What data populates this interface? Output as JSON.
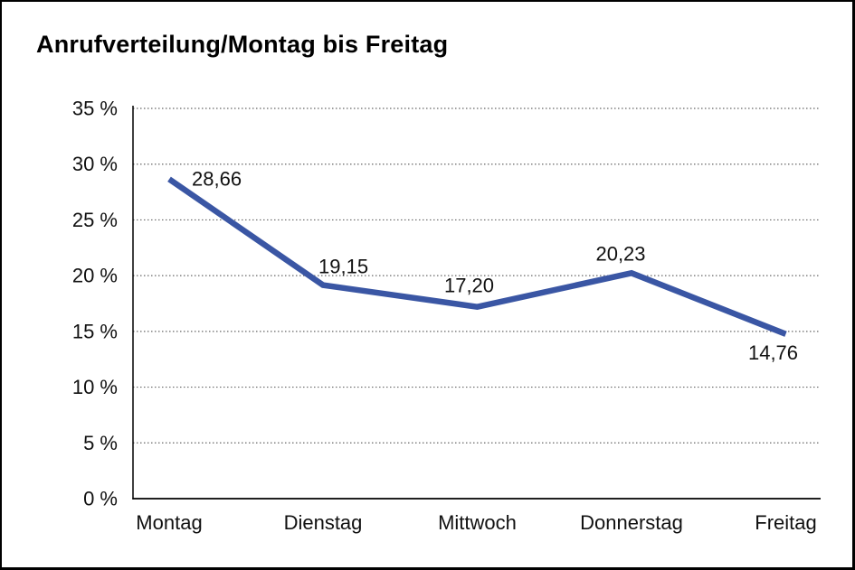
{
  "title": "Anrufverteilung/Montag bis Freitag",
  "colors": {
    "line": "#3A56A4",
    "grid": "#666666",
    "axis": "#000000",
    "text": "#111111",
    "background": "#ffffff",
    "border": "#000000"
  },
  "chart_data": {
    "type": "line",
    "title": "Anrufverteilung/Montag bis Freitag",
    "categories": [
      "Montag",
      "Dienstag",
      "Mittwoch",
      "Donnerstag",
      "Freitag"
    ],
    "values": [
      28.66,
      19.15,
      17.2,
      20.23,
      14.76
    ],
    "value_labels": [
      "28,66",
      "19,15",
      "17,20",
      "20,23",
      "14,76"
    ],
    "xlabel": "",
    "ylabel": "",
    "ylim": [
      0,
      35
    ],
    "ytick_step": 5,
    "ytick_labels": [
      "0 %",
      "5 %",
      "10 %",
      "15 %",
      "20 %",
      "25 %",
      "30 %",
      "35 %"
    ],
    "grid": "horizontal dotted lines at every 5 %",
    "legend": "none",
    "series_color": "#3A56A4"
  }
}
